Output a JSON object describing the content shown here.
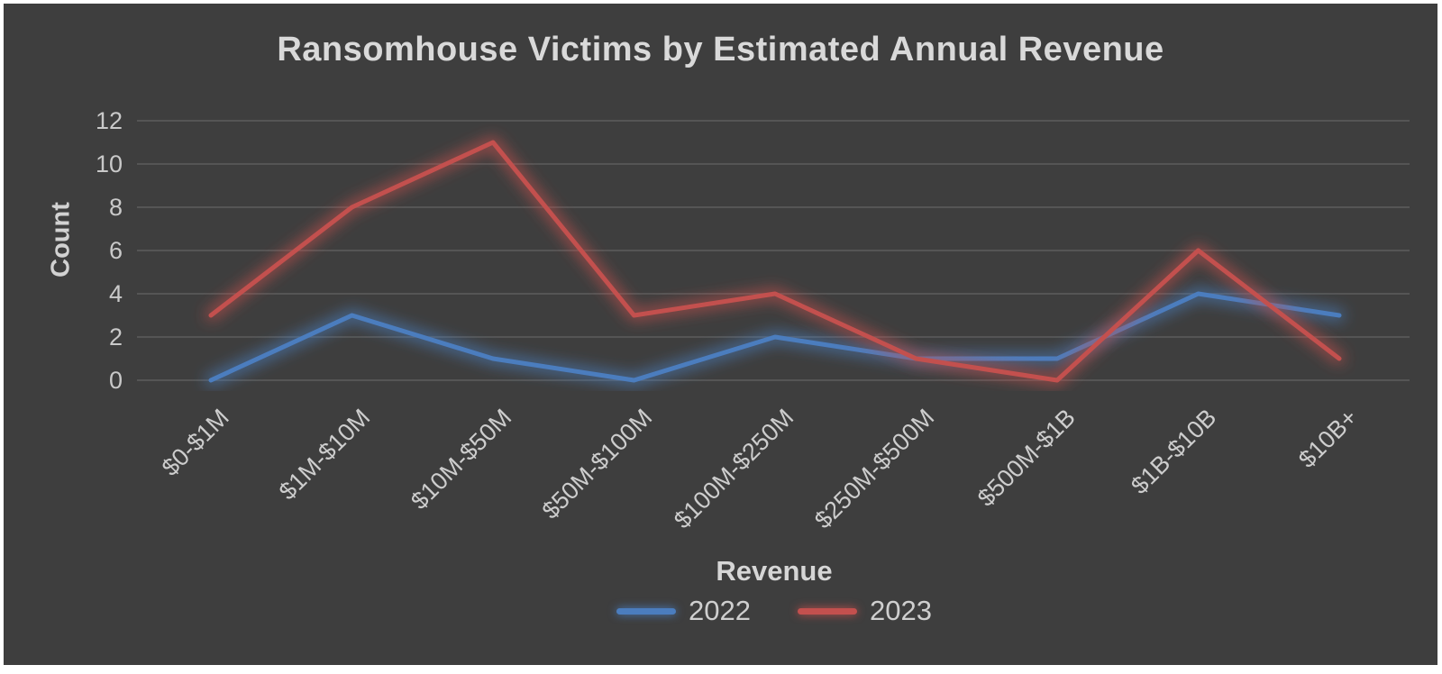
{
  "chart_data": {
    "type": "line",
    "title": "Ransomhouse Victims by Estimated Annual Revenue",
    "xlabel": "Revenue",
    "ylabel": "Count",
    "categories": [
      "$0-$1M",
      "$1M-$10M",
      "$10M-$50M",
      "$50M-$100M",
      "$100M-$250M",
      "$250M-$500M",
      "$500M-$1B",
      "$1B-$10B",
      "$10B+"
    ],
    "series": [
      {
        "name": "2022",
        "color": "#4b7dbe",
        "values": [
          0,
          3,
          1,
          0,
          2,
          1,
          1,
          4,
          3
        ]
      },
      {
        "name": "2023",
        "color": "#c3504e",
        "values": [
          3,
          8,
          11,
          3,
          4,
          1,
          0,
          6,
          1
        ]
      }
    ],
    "y_ticks": [
      0,
      2,
      4,
      6,
      8,
      10,
      12
    ],
    "ylim": [
      0,
      12
    ],
    "grid": true,
    "legend_position": "bottom",
    "colors": {
      "background": "#3e3e3e",
      "frame": "#ffffff",
      "title_text": "#d9d9d9",
      "tick_text": "#c9c9c9",
      "gridline": "rgba(255,255,255,0.16)"
    }
  }
}
